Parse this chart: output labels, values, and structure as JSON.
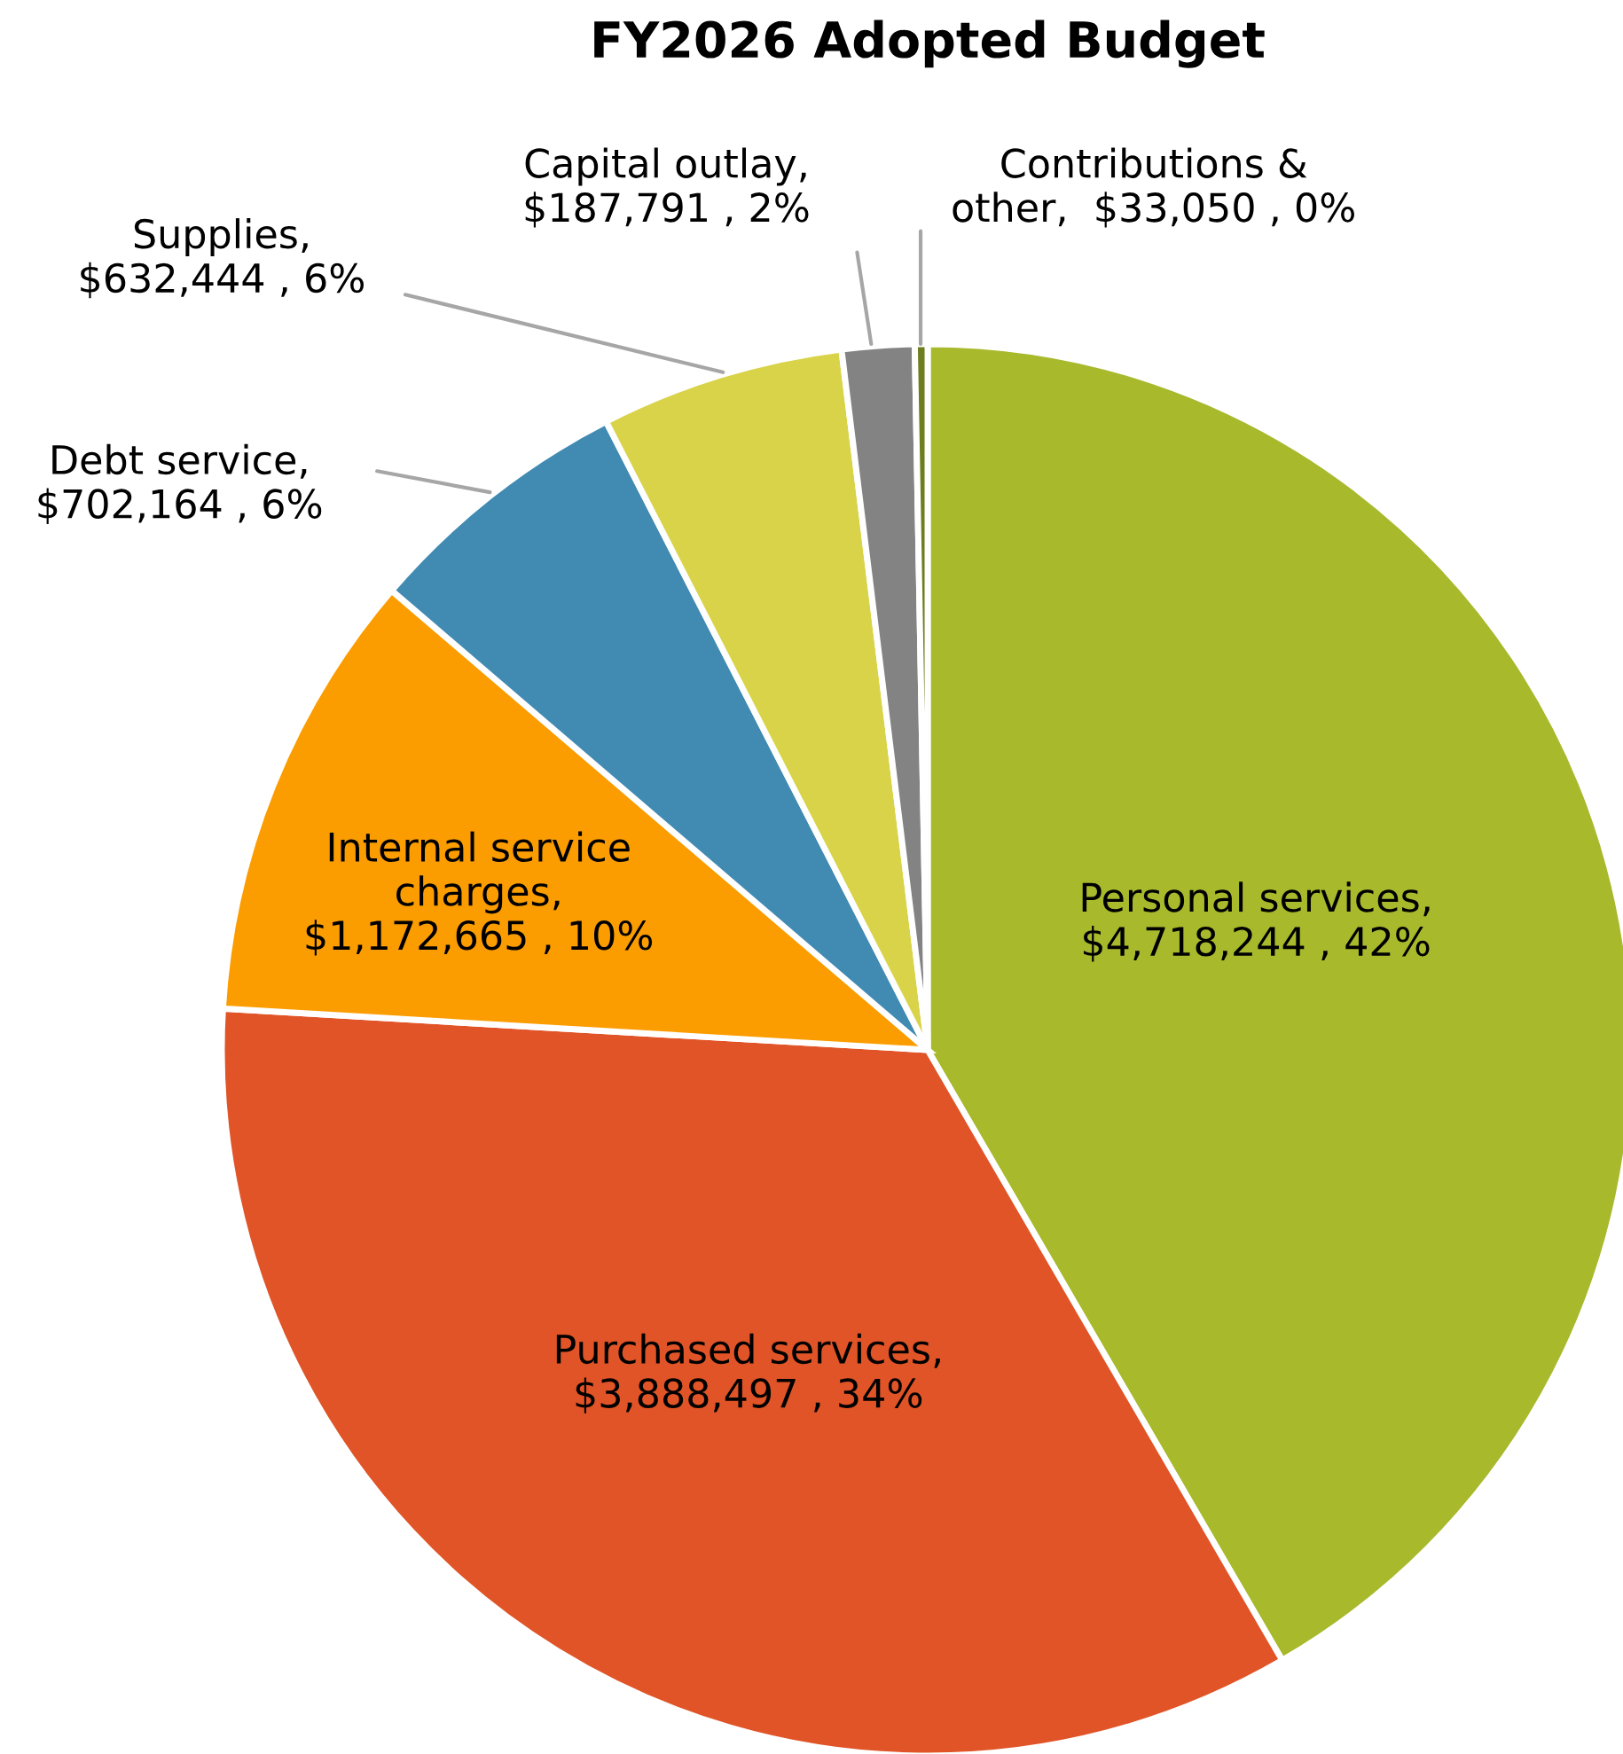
{
  "chart_data": {
    "type": "pie",
    "title": "FY2026 Adopted Budget",
    "categories": [
      "Personal services",
      "Purchased services",
      "Internal service\ncharges",
      "Debt service",
      "Supplies",
      "Capital outlay",
      "Contributions &\nother"
    ],
    "values": [
      4718244,
      3888497,
      1172665,
      702164,
      632444,
      187791,
      33050
    ],
    "value_labels": [
      ",\n$4,718,244 , 42%",
      ",\n$3,888,497 , 34%",
      ",\n$1,172,665 , 10%",
      ",\n$702,164 , 6%",
      ",\n$632,444 , 6%",
      ",\n$187,791 , 2%",
      ",  $33,050 , 0%"
    ],
    "colors": [
      "#a8b92c",
      "#e05427",
      "#fb9d00",
      "#418bb3",
      "#d9d349",
      "#838383",
      "#6e7d1e"
    ],
    "legend": false
  }
}
